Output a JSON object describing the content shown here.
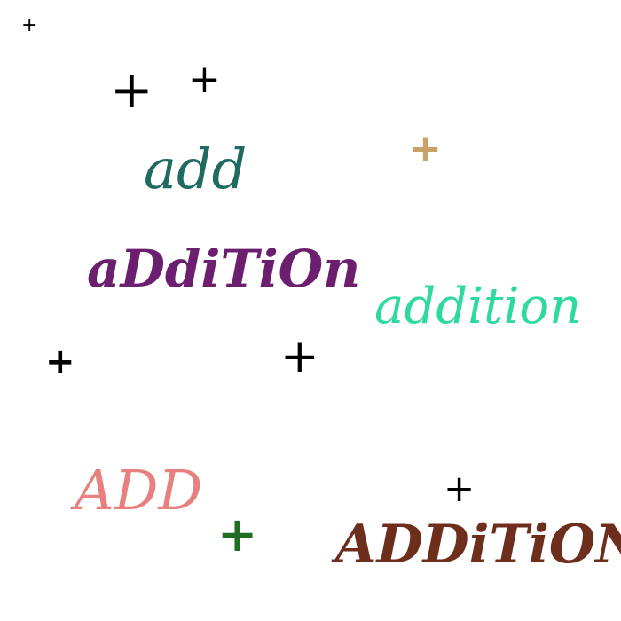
{
  "words": {
    "add": {
      "text": "add",
      "color": "#1f6b62"
    },
    "addition_mixed": {
      "text": "aDdiTiOn",
      "color": "#6b1f6e"
    },
    "addition": {
      "text": "addition",
      "color": "#2fd9a0"
    },
    "ADD": {
      "text": "ADD",
      "color": "#e88080"
    },
    "ADDITION": {
      "text": "ADDiTiON",
      "color": "#6e2e1c"
    }
  },
  "plus_signs": [
    {
      "glyph": "+",
      "color": "#000000"
    },
    {
      "glyph": "+",
      "color": "#000000"
    },
    {
      "glyph": "+",
      "color": "#000000"
    },
    {
      "glyph": "+",
      "color": "#c8a268"
    },
    {
      "glyph": "+",
      "color": "#000000"
    },
    {
      "glyph": "+",
      "color": "#000000"
    },
    {
      "glyph": "+",
      "color": "#000000"
    },
    {
      "glyph": "+",
      "color": "#1f6e24"
    }
  ]
}
